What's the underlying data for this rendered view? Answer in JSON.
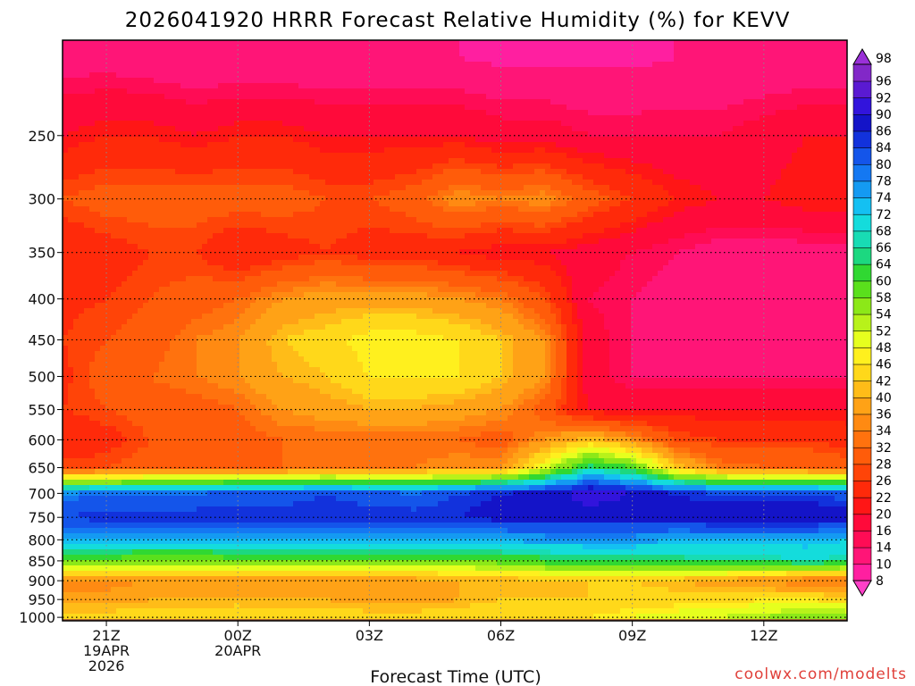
{
  "colors": {
    "ground": "#a85c38",
    "frame": "#000000",
    "grid": "#000000",
    "credit": "#e0403a"
  },
  "chart_data": {
    "type": "heatmap",
    "title": "2026041920 HRRR Forecast Relative Humidity (%) for KEVV",
    "xlabel": "Forecast Time (UTC)",
    "ylabel": "",
    "credit": "coolwx.com/modelts",
    "x_ticks": [
      {
        "hour": 21,
        "label": "21Z",
        "date": "19APR",
        "year": "2026"
      },
      {
        "hour": 24,
        "label": "00Z",
        "date": "20APR",
        "year": ""
      },
      {
        "hour": 27,
        "label": "03Z",
        "date": "",
        "year": ""
      },
      {
        "hour": 30,
        "label": "06Z",
        "date": "",
        "year": ""
      },
      {
        "hour": 33,
        "label": "09Z",
        "date": "",
        "year": ""
      },
      {
        "hour": 36,
        "label": "12Z",
        "date": "",
        "year": ""
      }
    ],
    "xlim": [
      20,
      37.9
    ],
    "y_axis": "pressure (hPa), log scale, inverted",
    "ylim": [
      1010,
      190
    ],
    "y_ticks": [
      250,
      300,
      350,
      400,
      450,
      500,
      550,
      600,
      650,
      700,
      750,
      800,
      850,
      900,
      950,
      1000
    ],
    "colorbar_levels": [
      8,
      10,
      14,
      16,
      20,
      22,
      26,
      28,
      32,
      34,
      36,
      40,
      42,
      46,
      48,
      52,
      54,
      58,
      60,
      64,
      66,
      68,
      72,
      74,
      78,
      80,
      84,
      86,
      90,
      92,
      96,
      98
    ],
    "colorbar_colors": [
      "#ff1fa0",
      "#ff1577",
      "#ff0c55",
      "#ff0a3a",
      "#ff1616",
      "#ff2a0a",
      "#ff4408",
      "#ff5c0a",
      "#ff720e",
      "#ff8a12",
      "#ffa216",
      "#ffbc18",
      "#ffd81a",
      "#fff01e",
      "#e6ff1e",
      "#b8f21a",
      "#8ce818",
      "#5ae01c",
      "#30d832",
      "#1cd880",
      "#18dcb4",
      "#14dcdc",
      "#14c0f2",
      "#149af2",
      "#1478f2",
      "#1455ea",
      "#1232dc",
      "#1414c8",
      "#3214dc",
      "#5a1ad2",
      "#8228c8"
    ],
    "rh_profiles": {
      "hours": [
        20,
        21,
        22,
        23,
        24,
        25,
        26,
        27,
        28,
        29,
        30,
        31,
        32,
        33,
        34,
        35,
        36,
        37,
        38
      ],
      "levels": [
        1000,
        950,
        900,
        850,
        800,
        750,
        700,
        650,
        600,
        550,
        500,
        450,
        400,
        350,
        300,
        250,
        200
      ],
      "values": [
        [
          44,
          38,
          34,
          60,
          74,
          84,
          78,
          28,
          22,
          26,
          25,
          26,
          25,
          22,
          28,
          20,
          12
        ],
        [
          44,
          38,
          34,
          58,
          74,
          86,
          80,
          28,
          24,
          28,
          30,
          28,
          26,
          24,
          30,
          22,
          12
        ],
        [
          44,
          40,
          36,
          56,
          74,
          86,
          80,
          30,
          28,
          30,
          32,
          30,
          28,
          26,
          30,
          22,
          11
        ],
        [
          44,
          40,
          36,
          56,
          74,
          86,
          80,
          30,
          30,
          30,
          34,
          34,
          30,
          26,
          30,
          20,
          10
        ],
        [
          46,
          40,
          38,
          58,
          74,
          86,
          82,
          32,
          30,
          32,
          36,
          36,
          32,
          22,
          30,
          22,
          10
        ],
        [
          44,
          40,
          38,
          58,
          74,
          86,
          82,
          32,
          32,
          36,
          40,
          42,
          36,
          24,
          30,
          22,
          10
        ],
        [
          44,
          40,
          38,
          58,
          74,
          86,
          84,
          34,
          32,
          38,
          42,
          44,
          38,
          26,
          28,
          20,
          10
        ],
        [
          44,
          38,
          38,
          58,
          74,
          86,
          82,
          34,
          32,
          40,
          46,
          48,
          38,
          24,
          28,
          20,
          10
        ],
        [
          44,
          38,
          38,
          58,
          74,
          86,
          80,
          34,
          32,
          40,
          46,
          48,
          38,
          24,
          30,
          20,
          10
        ],
        [
          44,
          40,
          40,
          58,
          74,
          86,
          84,
          36,
          32,
          38,
          46,
          46,
          36,
          22,
          36,
          20,
          10
        ],
        [
          46,
          42,
          40,
          60,
          74,
          88,
          86,
          36,
          30,
          36,
          42,
          42,
          34,
          20,
          34,
          18,
          9
        ],
        [
          46,
          42,
          40,
          62,
          76,
          88,
          88,
          50,
          36,
          30,
          36,
          36,
          28,
          20,
          36,
          18,
          9
        ],
        [
          46,
          42,
          42,
          64,
          76,
          88,
          92,
          66,
          42,
          20,
          18,
          18,
          16,
          18,
          30,
          16,
          9
        ],
        [
          48,
          44,
          42,
          64,
          76,
          88,
          90,
          60,
          36,
          20,
          14,
          14,
          14,
          16,
          26,
          16,
          9
        ],
        [
          50,
          44,
          40,
          64,
          74,
          88,
          86,
          42,
          28,
          20,
          14,
          12,
          12,
          14,
          22,
          16,
          10
        ],
        [
          52,
          44,
          38,
          66,
          74,
          90,
          84,
          34,
          26,
          20,
          14,
          12,
          12,
          12,
          20,
          16,
          10
        ],
        [
          54,
          46,
          36,
          66,
          74,
          90,
          84,
          32,
          26,
          20,
          14,
          12,
          12,
          12,
          20,
          18,
          10
        ],
        [
          58,
          46,
          32,
          68,
          74,
          90,
          84,
          32,
          26,
          20,
          14,
          12,
          12,
          12,
          22,
          20,
          10
        ],
        [
          56,
          44,
          32,
          66,
          72,
          88,
          82,
          30,
          24,
          20,
          14,
          12,
          12,
          12,
          22,
          20,
          10
        ]
      ]
    }
  }
}
